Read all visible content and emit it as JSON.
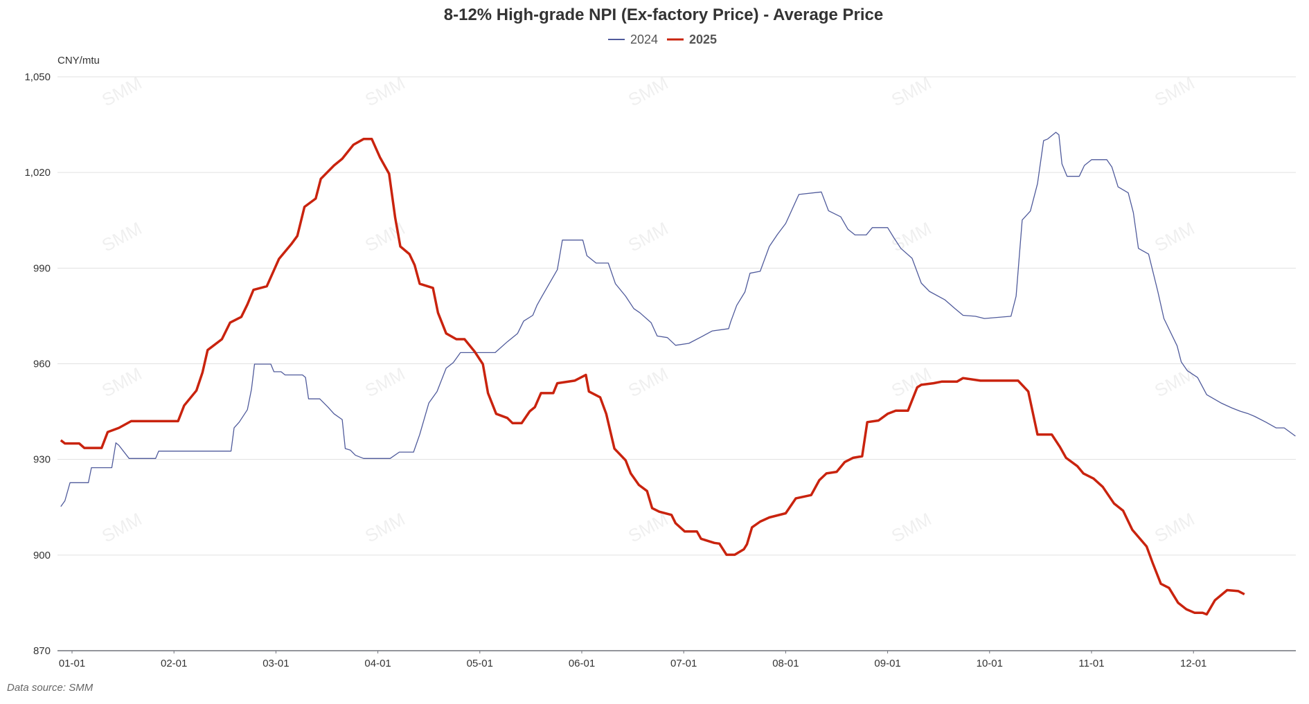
{
  "chart_data": {
    "type": "line",
    "title": "8-12% High-grade NPI (Ex-factory Price) - Average Price",
    "ylabel": "CNY/mtu",
    "xlabel": "",
    "x_unit": "month (1 = 01-01, 12 = 12-01, fractional)",
    "ylim": [
      870,
      1050
    ],
    "yticks": [
      870,
      900,
      930,
      960,
      990,
      1020,
      1050
    ],
    "ytick_labels": [
      "870",
      "900",
      "930",
      "960",
      "990",
      "1,020",
      "1,050"
    ],
    "xticks": [
      1,
      2,
      3,
      4,
      5,
      6,
      7,
      8,
      9,
      10,
      11,
      12
    ],
    "xtick_labels": [
      "01-01",
      "02-01",
      "03-01",
      "04-01",
      "05-01",
      "06-01",
      "07-01",
      "08-01",
      "09-01",
      "10-01",
      "11-01",
      "12-01"
    ],
    "grid": true,
    "legend_position": "top-center",
    "source": "Data source:  SMM",
    "watermark": "SMM 上海有色网",
    "watermark_visible": "SMM",
    "series": [
      {
        "name": "2024",
        "color": "#4f5a9b",
        "points": [
          [
            0.89,
            915.2
          ],
          [
            0.93,
            917
          ],
          [
            0.98,
            922.7
          ],
          [
            1.16,
            922.7
          ],
          [
            1.19,
            927.4
          ],
          [
            1.39,
            927.4
          ],
          [
            1.43,
            935.2
          ],
          [
            1.46,
            934.4
          ],
          [
            1.56,
            930.3
          ],
          [
            1.82,
            930.3
          ],
          [
            1.85,
            932.6
          ],
          [
            2.56,
            932.6
          ],
          [
            2.59,
            939.9
          ],
          [
            2.64,
            941.7
          ],
          [
            2.72,
            945.6
          ],
          [
            2.76,
            952
          ],
          [
            2.79,
            959.9
          ],
          [
            2.95,
            959.9
          ],
          [
            2.98,
            957.5
          ],
          [
            3.05,
            957.5
          ],
          [
            3.09,
            956.5
          ],
          [
            3.26,
            956.5
          ],
          [
            3.29,
            955.7
          ],
          [
            3.32,
            949
          ],
          [
            3.43,
            949
          ],
          [
            3.51,
            946.4
          ],
          [
            3.57,
            944.3
          ],
          [
            3.65,
            942.5
          ],
          [
            3.68,
            933.4
          ],
          [
            3.73,
            932.9
          ],
          [
            3.78,
            931.3
          ],
          [
            3.86,
            930.3
          ],
          [
            4.12,
            930.3
          ],
          [
            4.21,
            932.3
          ],
          [
            4.35,
            932.3
          ],
          [
            4.41,
            937.8
          ],
          [
            4.5,
            947.7
          ],
          [
            4.58,
            951.3
          ],
          [
            4.67,
            958.6
          ],
          [
            4.74,
            960.4
          ],
          [
            4.81,
            963.5
          ],
          [
            5.15,
            963.5
          ],
          [
            5.27,
            966.9
          ],
          [
            5.37,
            969.5
          ],
          [
            5.43,
            973.4
          ],
          [
            5.52,
            975.2
          ],
          [
            5.56,
            978.3
          ],
          [
            5.61,
            981.2
          ],
          [
            5.76,
            989.5
          ],
          [
            5.81,
            998.8
          ],
          [
            6.01,
            998.8
          ],
          [
            6.05,
            993.9
          ],
          [
            6.14,
            991.6
          ],
          [
            6.26,
            991.6
          ],
          [
            6.33,
            985.1
          ],
          [
            6.43,
            981.2
          ],
          [
            6.51,
            977.3
          ],
          [
            6.57,
            976
          ],
          [
            6.68,
            972.9
          ],
          [
            6.74,
            968.7
          ],
          [
            6.84,
            968.2
          ],
          [
            6.92,
            965.8
          ],
          [
            7.05,
            966.4
          ],
          [
            7.17,
            968.4
          ],
          [
            7.28,
            970.3
          ],
          [
            7.44,
            971
          ],
          [
            7.46,
            973.1
          ],
          [
            7.52,
            978.3
          ],
          [
            7.6,
            982.5
          ],
          [
            7.65,
            988.4
          ],
          [
            7.75,
            989
          ],
          [
            7.84,
            996.8
          ],
          [
            7.92,
            1000.6
          ],
          [
            8.0,
            1004
          ],
          [
            8.13,
            1013.1
          ],
          [
            8.35,
            1013.9
          ],
          [
            8.42,
            1008
          ],
          [
            8.54,
            1006.1
          ],
          [
            8.61,
            1002.2
          ],
          [
            8.68,
            1000.4
          ],
          [
            8.79,
            1000.4
          ],
          [
            8.85,
            1002.7
          ],
          [
            9.0,
            1002.7
          ],
          [
            9.06,
            999.6
          ],
          [
            9.13,
            996.2
          ],
          [
            9.24,
            993.1
          ],
          [
            9.33,
            985.3
          ],
          [
            9.41,
            982.7
          ],
          [
            9.56,
            980.1
          ],
          [
            9.66,
            977.3
          ],
          [
            9.74,
            975.2
          ],
          [
            9.86,
            974.9
          ],
          [
            9.95,
            974.2
          ],
          [
            10.21,
            974.9
          ],
          [
            10.26,
            981.2
          ],
          [
            10.32,
            1005.1
          ],
          [
            10.4,
            1007.9
          ],
          [
            10.47,
            1016.5
          ],
          [
            10.53,
            1030
          ],
          [
            10.57,
            1030.5
          ],
          [
            10.65,
            1032.6
          ],
          [
            10.68,
            1031.8
          ],
          [
            10.71,
            1022.7
          ],
          [
            10.76,
            1018.8
          ],
          [
            10.88,
            1018.8
          ],
          [
            10.93,
            1022.2
          ],
          [
            11.0,
            1024
          ],
          [
            11.15,
            1024
          ],
          [
            11.2,
            1021.7
          ],
          [
            11.26,
            1015.5
          ],
          [
            11.36,
            1013.6
          ],
          [
            11.41,
            1007.4
          ],
          [
            11.46,
            996.2
          ],
          [
            11.56,
            994.4
          ],
          [
            11.65,
            982.7
          ],
          [
            11.71,
            974.2
          ],
          [
            11.84,
            965.6
          ],
          [
            11.88,
            960.6
          ],
          [
            11.94,
            957.8
          ],
          [
            12.04,
            955.7
          ],
          [
            12.13,
            950.3
          ],
          [
            12.27,
            947.7
          ],
          [
            12.38,
            946.1
          ],
          [
            12.46,
            945.1
          ],
          [
            12.54,
            944.3
          ],
          [
            12.6,
            943.5
          ],
          [
            12.71,
            941.7
          ],
          [
            12.81,
            939.9
          ],
          [
            12.89,
            939.9
          ],
          [
            13.0,
            937.3
          ]
        ]
      },
      {
        "name": "2025",
        "color": "#c9230e",
        "points": [
          [
            0.89,
            936
          ],
          [
            0.93,
            935
          ],
          [
            1.07,
            935
          ],
          [
            1.12,
            933.6
          ],
          [
            1.29,
            933.6
          ],
          [
            1.35,
            938.6
          ],
          [
            1.46,
            939.9
          ],
          [
            1.58,
            942
          ],
          [
            2.04,
            942
          ],
          [
            2.1,
            946.9
          ],
          [
            2.22,
            951.6
          ],
          [
            2.28,
            957.3
          ],
          [
            2.33,
            964.3
          ],
          [
            2.47,
            967.7
          ],
          [
            2.55,
            972.9
          ],
          [
            2.66,
            974.7
          ],
          [
            2.72,
            978.6
          ],
          [
            2.78,
            983.2
          ],
          [
            2.91,
            984.3
          ],
          [
            3.03,
            992.9
          ],
          [
            3.15,
            997.5
          ],
          [
            3.21,
            1000.1
          ],
          [
            3.28,
            1009.2
          ],
          [
            3.39,
            1011.8
          ],
          [
            3.44,
            1018
          ],
          [
            3.57,
            1022.2
          ],
          [
            3.65,
            1024.3
          ],
          [
            3.76,
            1028.7
          ],
          [
            3.86,
            1030.5
          ],
          [
            3.94,
            1030.5
          ],
          [
            4.02,
            1024.8
          ],
          [
            4.11,
            1019.6
          ],
          [
            4.17,
            1005.8
          ],
          [
            4.22,
            996.8
          ],
          [
            4.31,
            994.4
          ],
          [
            4.36,
            991
          ],
          [
            4.41,
            985.1
          ],
          [
            4.54,
            983.8
          ],
          [
            4.59,
            976
          ],
          [
            4.67,
            969.5
          ],
          [
            4.77,
            967.7
          ],
          [
            4.85,
            967.7
          ],
          [
            4.95,
            963.8
          ],
          [
            5.03,
            959.9
          ],
          [
            5.08,
            950.8
          ],
          [
            5.16,
            944.3
          ],
          [
            5.27,
            943
          ],
          [
            5.32,
            941.4
          ],
          [
            5.41,
            941.4
          ],
          [
            5.49,
            945.1
          ],
          [
            5.54,
            946.4
          ],
          [
            5.6,
            950.8
          ],
          [
            5.72,
            950.8
          ],
          [
            5.76,
            953.9
          ],
          [
            5.93,
            954.7
          ],
          [
            6.04,
            956.5
          ],
          [
            6.07,
            951.3
          ],
          [
            6.18,
            949.5
          ],
          [
            6.24,
            944.3
          ],
          [
            6.32,
            933.4
          ],
          [
            6.43,
            929.7
          ],
          [
            6.48,
            925.6
          ],
          [
            6.56,
            922
          ],
          [
            6.64,
            920.1
          ],
          [
            6.69,
            914.7
          ],
          [
            6.76,
            913.6
          ],
          [
            6.88,
            912.6
          ],
          [
            6.92,
            910
          ],
          [
            7.01,
            907.4
          ],
          [
            7.13,
            907.4
          ],
          [
            7.17,
            905.1
          ],
          [
            7.3,
            903.8
          ],
          [
            7.35,
            903.6
          ],
          [
            7.42,
            900.1
          ],
          [
            7.5,
            900.1
          ],
          [
            7.59,
            901.8
          ],
          [
            7.62,
            903.4
          ],
          [
            7.67,
            908.7
          ],
          [
            7.75,
            910.5
          ],
          [
            7.84,
            911.8
          ],
          [
            8.0,
            913.1
          ],
          [
            8.1,
            917.8
          ],
          [
            8.25,
            918.8
          ],
          [
            8.33,
            923.5
          ],
          [
            8.4,
            925.6
          ],
          [
            8.5,
            926.1
          ],
          [
            8.58,
            929.2
          ],
          [
            8.66,
            930.5
          ],
          [
            8.75,
            931
          ],
          [
            8.8,
            941.7
          ],
          [
            8.91,
            942.2
          ],
          [
            9.0,
            944.3
          ],
          [
            9.08,
            945.3
          ],
          [
            9.2,
            945.3
          ],
          [
            9.29,
            952.6
          ],
          [
            9.33,
            953.4
          ],
          [
            9.45,
            953.9
          ],
          [
            9.53,
            954.4
          ],
          [
            9.68,
            954.4
          ],
          [
            9.74,
            955.5
          ],
          [
            9.91,
            954.7
          ],
          [
            10.28,
            954.7
          ],
          [
            10.38,
            951.3
          ],
          [
            10.47,
            937.8
          ],
          [
            10.61,
            937.8
          ],
          [
            10.69,
            933.9
          ],
          [
            10.75,
            930.5
          ],
          [
            10.86,
            927.9
          ],
          [
            10.92,
            925.6
          ],
          [
            11.02,
            924
          ],
          [
            11.11,
            921.4
          ],
          [
            11.22,
            916.2
          ],
          [
            11.31,
            913.9
          ],
          [
            11.4,
            907.9
          ],
          [
            11.54,
            902.7
          ],
          [
            11.6,
            897.5
          ],
          [
            11.68,
            891
          ],
          [
            11.76,
            889.7
          ],
          [
            11.85,
            885
          ],
          [
            11.93,
            883
          ],
          [
            12.01,
            881.9
          ],
          [
            12.09,
            881.9
          ],
          [
            12.13,
            881.4
          ],
          [
            12.21,
            885.8
          ],
          [
            12.27,
            887.4
          ],
          [
            12.33,
            889
          ],
          [
            12.44,
            888.7
          ],
          [
            12.5,
            887.7
          ]
        ]
      }
    ]
  }
}
